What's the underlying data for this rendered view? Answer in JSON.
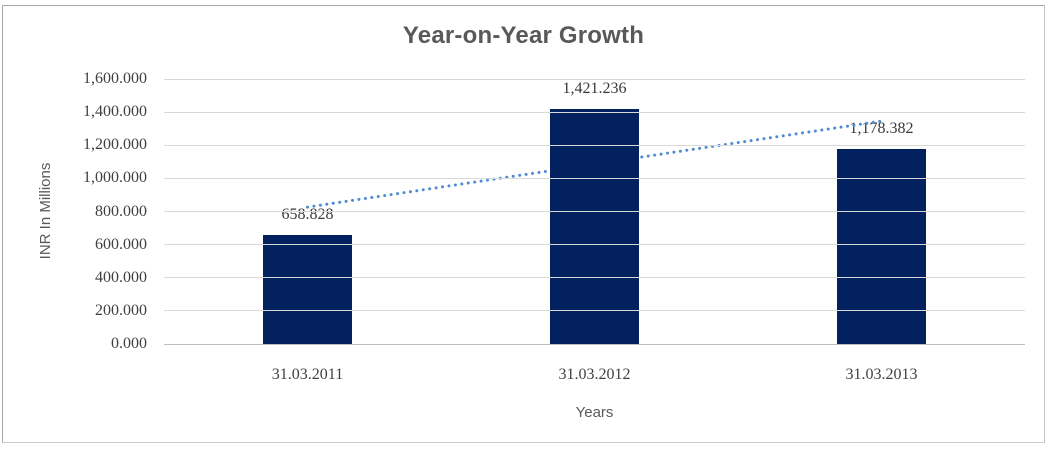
{
  "chart_data": {
    "type": "bar",
    "title": "Year-on-Year Growth",
    "xlabel": "Years",
    "ylabel": "INR In Millions",
    "categories": [
      "31.03.2011",
      "31.03.2012",
      "31.03.2013"
    ],
    "values": [
      658.828,
      1421.236,
      1178.382
    ],
    "data_labels": [
      "658.828",
      "1,421.236",
      "1,178.382"
    ],
    "ylim": [
      0,
      1600
    ],
    "ytick_step": 200,
    "ytick_labels": [
      "0.000",
      "200.000",
      "400.000",
      "600.000",
      "800.000",
      "1,000.000",
      "1,200.000",
      "1,400.000",
      "1,600.000"
    ],
    "grid": true,
    "legend": "none",
    "bar_color": "#02215e",
    "gridline_color": "#d9d9d9",
    "trendline": {
      "style": "dotted",
      "color": "#4e8bd3",
      "start_value": 826.4,
      "end_value": 1345.9
    }
  }
}
